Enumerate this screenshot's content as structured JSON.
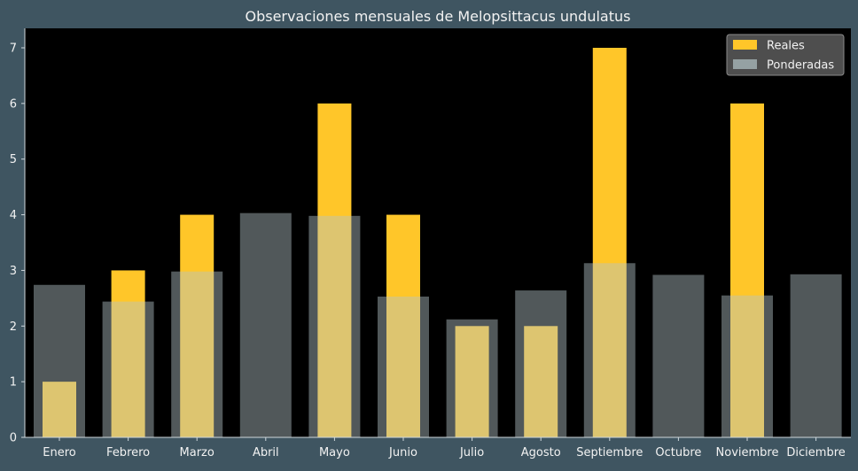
{
  "chart_data": {
    "type": "bar",
    "title": "Observaciones mensuales de Melopsittacus undulatus",
    "xlabel": "",
    "ylabel": "",
    "categories": [
      "Enero",
      "Febrero",
      "Marzo",
      "Abril",
      "Mayo",
      "Junio",
      "Julio",
      "Agosto",
      "Septiembre",
      "Octubre",
      "Noviembre",
      "Diciembre"
    ],
    "series": [
      {
        "name": "Reales",
        "values": [
          1,
          3,
          4,
          0,
          6,
          4,
          2,
          2,
          7,
          0,
          6,
          0
        ],
        "color": "#ffc629"
      },
      {
        "name": "Ponderadas",
        "values": [
          2.74,
          2.44,
          2.98,
          4.03,
          3.98,
          2.53,
          2.12,
          2.64,
          3.13,
          2.92,
          2.55,
          2.93
        ],
        "color": "#b3c4c8",
        "opacity": 0.45
      }
    ],
    "ylim": [
      0,
      7.35
    ],
    "yticks": [
      0,
      1,
      2,
      3,
      4,
      5,
      6,
      7
    ],
    "grid": false,
    "legend_position": "top-right",
    "plot_background": "#000000",
    "figure_background": "#3f5561"
  }
}
